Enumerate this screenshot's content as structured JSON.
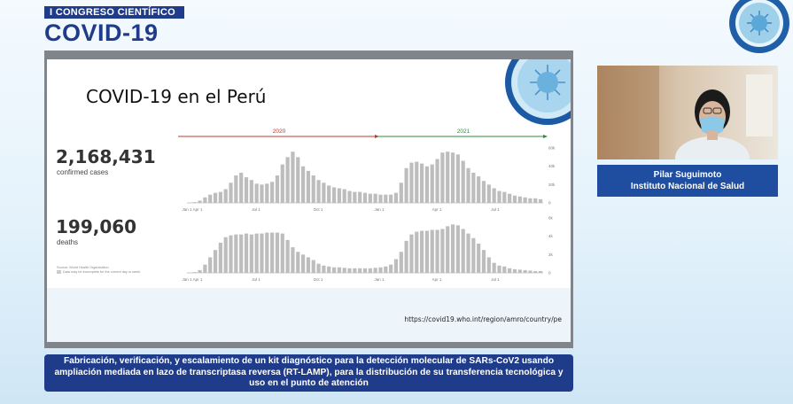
{
  "header": {
    "congress_label": "I CONGRESO CIENTÍFICO",
    "brand_title": "COVID-19"
  },
  "slide": {
    "title": "COVID-19 en el Perú",
    "source_url": "https://covid19.who.int/region/amro/country/pe",
    "stats": {
      "cases_value": "2,168,431",
      "cases_label": "confirmed cases",
      "deaths_value": "199,060",
      "deaths_label": "deaths"
    },
    "source_note": "Source: World Health Organization",
    "legend_note": "Data may be incomplete for the current day or week",
    "years": [
      "2020",
      "2021"
    ],
    "year_colors": {
      "2020": "#c0392b",
      "2021": "#2e8b3c"
    }
  },
  "speaker": {
    "name": "Pilar Suguimoto",
    "institution": "Instituto Nacional de Salud"
  },
  "caption": {
    "text": "Fabricación, verificación, y escalamiento de un kit diagnóstico para la detección molecular de SARs-CoV2 usando ampliación mediada en lazo de transcriptasa reversa (RT-LAMP), para la distribución de su transferencia tecnológica y uso en el punto de atención"
  },
  "chart_data": [
    {
      "type": "bar",
      "name": "confirmed cases",
      "xticks": [
        "Jan 1",
        "Apr 1",
        "Jul 1",
        "Oct 1",
        "Jan 1",
        "Apr 1",
        "Jul 1"
      ],
      "yticks": [
        "0",
        "20k",
        "40k",
        "60k"
      ],
      "ylim": [
        0,
        62000
      ],
      "values": [
        200,
        800,
        2500,
        6000,
        9000,
        11000,
        12000,
        15000,
        22000,
        30000,
        33000,
        28000,
        25000,
        21000,
        20000,
        21000,
        23000,
        30000,
        42000,
        50000,
        56000,
        50000,
        40000,
        35000,
        30000,
        25000,
        22000,
        19000,
        17000,
        16000,
        15000,
        13000,
        12000,
        12000,
        11000,
        10000,
        10000,
        9000,
        9000,
        9000,
        11000,
        22000,
        38000,
        44000,
        45000,
        43000,
        40000,
        42000,
        48000,
        55000,
        56000,
        55000,
        53000,
        46000,
        38000,
        33000,
        29000,
        24000,
        20000,
        16000,
        13000,
        12000,
        10000,
        8000,
        7000,
        6000,
        5000,
        5000,
        4000
      ]
    },
    {
      "type": "bar",
      "name": "deaths",
      "xticks": [
        "Jan 1",
        "Apr 1",
        "Jul 1",
        "Oct 1",
        "Jan 1",
        "Apr 1",
        "Jul 1"
      ],
      "yticks": [
        "0",
        "2k",
        "4k",
        "6k"
      ],
      "ylim": [
        0,
        6200
      ],
      "values": [
        20,
        80,
        300,
        900,
        1700,
        2500,
        3300,
        3900,
        4100,
        4200,
        4200,
        4300,
        4200,
        4300,
        4300,
        4400,
        4400,
        4400,
        4300,
        3600,
        2800,
        2300,
        2000,
        1700,
        1400,
        1000,
        800,
        700,
        600,
        600,
        550,
        500,
        500,
        500,
        500,
        500,
        550,
        600,
        700,
        900,
        1500,
        2300,
        3500,
        4200,
        4500,
        4600,
        4600,
        4700,
        4700,
        4800,
        5100,
        5300,
        5200,
        4800,
        4300,
        3800,
        3200,
        2500,
        1700,
        1100,
        800,
        700,
        500,
        400,
        350,
        300,
        250,
        200,
        200
      ]
    }
  ]
}
